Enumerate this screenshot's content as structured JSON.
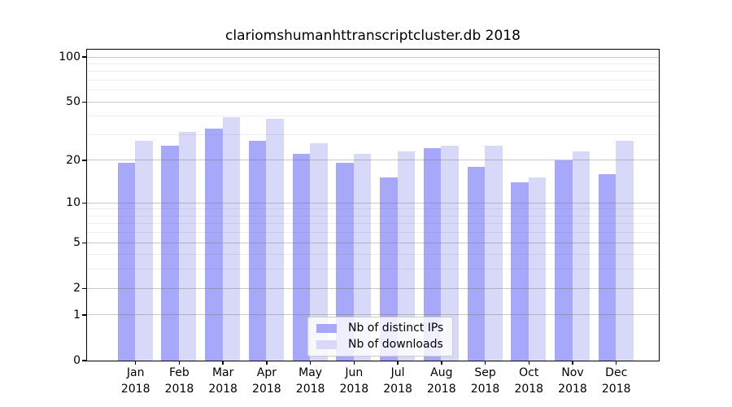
{
  "title": "clariomshumanhttranscriptcluster.db 2018",
  "chart_data": {
    "type": "bar",
    "title": "clariomshumanhttranscriptcluster.db 2018",
    "categories": [
      "Jan",
      "Feb",
      "Mar",
      "Apr",
      "May",
      "Jun",
      "Jul",
      "Aug",
      "Sep",
      "Oct",
      "Nov",
      "Dec"
    ],
    "category_year": "2018",
    "series": [
      {
        "name": "Nb of distinct IPs",
        "color": "#a8a8fa",
        "values": [
          19,
          25,
          33,
          27,
          22,
          19,
          15,
          24,
          18,
          14,
          20,
          16
        ]
      },
      {
        "name": "Nb of downloads",
        "color": "#d8d8f9",
        "values": [
          27,
          31,
          39,
          38,
          26,
          22,
          23,
          25,
          25,
          15,
          23,
          27
        ]
      }
    ],
    "xlabel": "",
    "ylabel": "",
    "y_axis": {
      "scale": "log1p",
      "ticks": [
        0,
        1,
        2,
        5,
        10,
        20,
        50,
        100
      ],
      "minor_ticks": [
        3,
        4,
        6,
        7,
        8,
        9,
        30,
        40,
        60,
        70,
        80,
        90
      ],
      "max": 112
    },
    "grid": true,
    "legend_position": "bottom-center",
    "colors": {
      "spine": "#000000",
      "major_grid": "#cfcfcf",
      "minor_grid": "#ededed",
      "background": "#ffffff",
      "text": "#000000"
    }
  }
}
